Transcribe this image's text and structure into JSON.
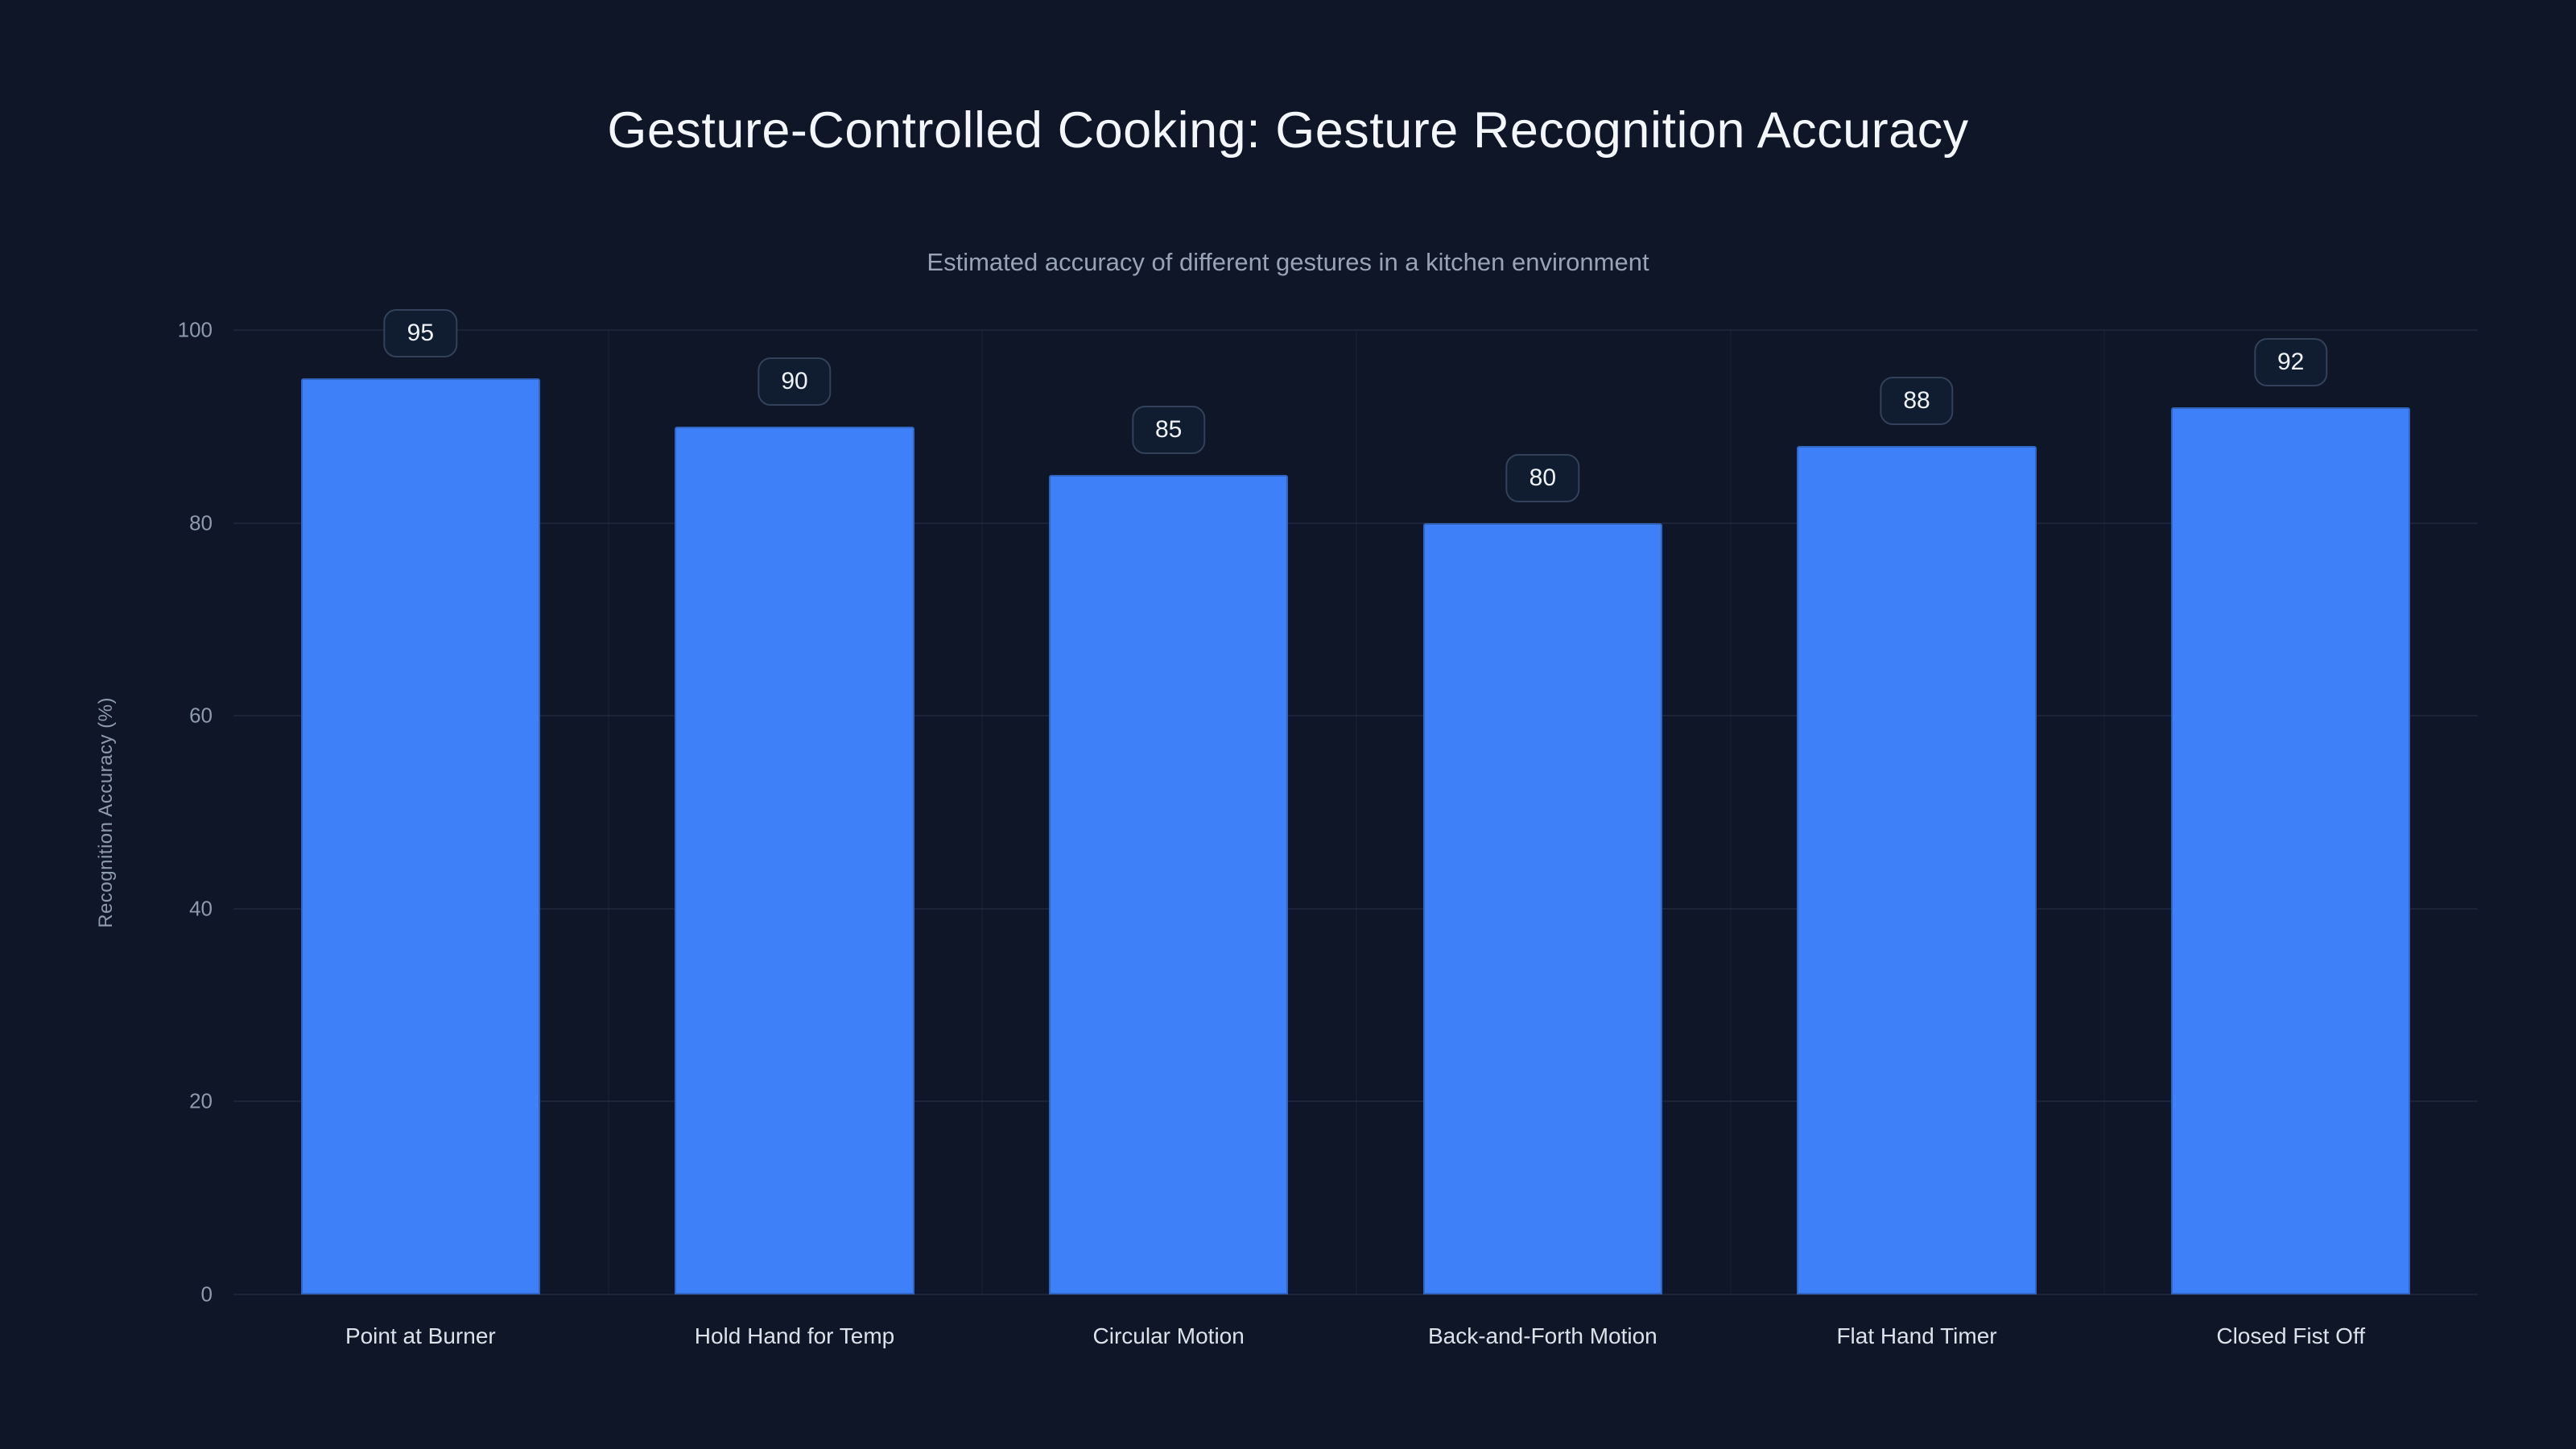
{
  "chart_data": {
    "type": "bar",
    "title": "Gesture-Controlled Cooking: Gesture Recognition Accuracy",
    "subtitle": "Estimated accuracy of different gestures in a kitchen environment",
    "categories": [
      "Point at Burner",
      "Hold Hand for Temp",
      "Circular Motion",
      "Back-and-Forth Motion",
      "Flat Hand Timer",
      "Closed Fist Off"
    ],
    "values": [
      95,
      90,
      85,
      80,
      88,
      92
    ],
    "xlabel": "",
    "ylabel": "Recognition Accuracy (%)",
    "ylim": [
      0,
      100
    ],
    "yticks": [
      0,
      20,
      40,
      60,
      80,
      100
    ],
    "grid": true,
    "legend": "none",
    "bar_color": "#3d80f7",
    "background_color": "#0e1627",
    "grid_color": "rgba(148,163,184,0.10)",
    "badge_border_color": "#33415a",
    "badge_text_color": "#eef2f7",
    "tick_text_color": "#8e9aad",
    "category_text_color": "#dbe2ea",
    "title_color": "#f3f6fa",
    "subtitle_color": "#98a4b5"
  }
}
